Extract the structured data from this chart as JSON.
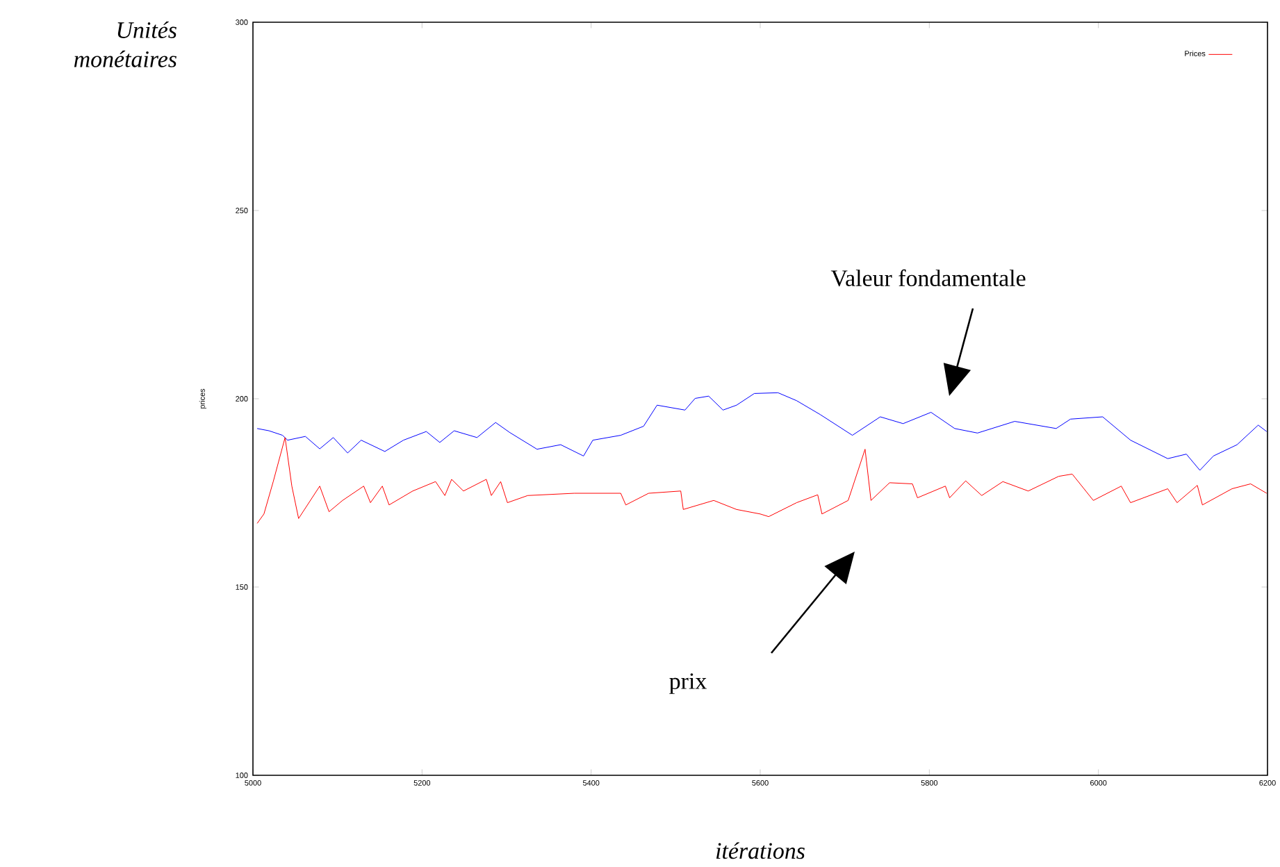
{
  "chart_data": {
    "type": "line",
    "ylabel": "prices",
    "xlabel": "itérations",
    "xlim": [
      5000,
      6200
    ],
    "ylim": [
      100,
      300
    ],
    "xticks": [
      5000,
      5200,
      5400,
      5600,
      5800,
      6000,
      6200
    ],
    "yticks": [
      100,
      150,
      200,
      250,
      300
    ],
    "legend": "top right",
    "marker": "none",
    "line_style": "solid",
    "series": [
      {
        "color": "#0000ff",
        "x": [
          5005,
          5019,
          5035,
          5041,
          5062,
          5079,
          5095,
          5112,
          5128,
          5156,
          5178,
          5205,
          5221,
          5238,
          5265,
          5287,
          5304,
          5336,
          5364,
          5391,
          5402,
          5435,
          5462,
          5478,
          5511,
          5523,
          5539,
          5556,
          5572,
          5593,
          5621,
          5643,
          5671,
          5709,
          5742,
          5769,
          5802,
          5830,
          5857,
          5901,
          5950,
          5967,
          6005,
          6038,
          6082,
          6104,
          6120,
          6136,
          6164,
          6189,
          6199
        ],
        "values": [
          192.1,
          191.5,
          190.3,
          189,
          190,
          186.7,
          189.7,
          185.6,
          189,
          186,
          189,
          191.3,
          188.4,
          191.5,
          189.7,
          193.7,
          191,
          186.6,
          187.8,
          184.8,
          189,
          190.3,
          192.7,
          198.3,
          197,
          200.1,
          200.7,
          197,
          198.3,
          201.4,
          201.6,
          199.5,
          195.8,
          190.3,
          195.2,
          193.4,
          196.4,
          192.1,
          190.9,
          194,
          192.1,
          194.6,
          195.2,
          189,
          184.1,
          185.3,
          181,
          184.8,
          187.8,
          193,
          191.3
        ]
      },
      {
        "name": "Prices",
        "color": "#ff0000",
        "x": [
          5005,
          5013,
          5024,
          5038,
          5046,
          5054,
          5079,
          5090,
          5106,
          5131,
          5139,
          5153,
          5161,
          5189,
          5216,
          5227,
          5235,
          5249,
          5276,
          5282,
          5293,
          5301,
          5325,
          5380,
          5435,
          5441,
          5468,
          5506,
          5509,
          5545,
          5572,
          5600,
          5610,
          5643,
          5668,
          5673,
          5704,
          5724,
          5731,
          5753,
          5780,
          5786,
          5819,
          5824,
          5843,
          5862,
          5887,
          5917,
          5953,
          5969,
          5994,
          6027,
          6038,
          6082,
          6093,
          6117,
          6123,
          6158,
          6180,
          6199
        ],
        "values": [
          166.9,
          169.4,
          178,
          189.7,
          176.8,
          168.2,
          176.8,
          170,
          173,
          176.8,
          172.4,
          176.8,
          171.8,
          175.5,
          178,
          174.3,
          178.6,
          175.5,
          178.6,
          174.3,
          178,
          172.4,
          174.3,
          174.9,
          174.9,
          171.8,
          174.9,
          175.5,
          170.6,
          173,
          170.6,
          169.4,
          168.7,
          172.4,
          174.5,
          169.4,
          173,
          186.6,
          173,
          177.7,
          177.4,
          173.7,
          176.8,
          173.7,
          178.2,
          174.3,
          178,
          175.5,
          179.4,
          180,
          173,
          176.8,
          172.4,
          176.1,
          172.4,
          177,
          171.8,
          176.1,
          177.4,
          174.9
        ]
      }
    ],
    "annotations": [
      "Valeur fondamentale",
      "prix",
      "Unités monétaires"
    ]
  }
}
